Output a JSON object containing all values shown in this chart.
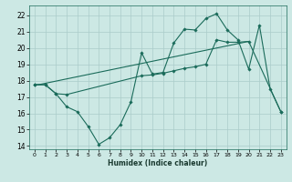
{
  "xlabel": "Humidex (Indice chaleur)",
  "background_color": "#cce8e4",
  "grid_color": "#aaccca",
  "line_color": "#1a6b5a",
  "xlim": [
    -0.5,
    23.5
  ],
  "ylim": [
    13.8,
    22.6
  ],
  "xticks": [
    0,
    1,
    2,
    3,
    4,
    5,
    6,
    7,
    8,
    9,
    10,
    11,
    12,
    13,
    14,
    15,
    16,
    17,
    18,
    19,
    20,
    21,
    22,
    23
  ],
  "yticks": [
    14,
    15,
    16,
    17,
    18,
    19,
    20,
    21,
    22
  ],
  "line1_x": [
    0,
    1,
    2,
    3,
    4,
    5,
    6,
    7,
    8,
    9,
    10,
    11,
    12,
    13,
    14,
    15,
    16,
    17,
    18,
    19,
    20,
    21,
    22,
    23
  ],
  "line1_y": [
    17.75,
    17.75,
    17.2,
    16.4,
    16.1,
    15.2,
    14.1,
    14.5,
    15.3,
    16.7,
    19.7,
    18.4,
    18.5,
    20.3,
    21.15,
    21.1,
    21.8,
    22.1,
    21.1,
    20.5,
    18.7,
    21.4,
    17.5,
    16.1
  ],
  "line2_x": [
    0,
    20
  ],
  "line2_y": [
    17.7,
    20.4
  ],
  "line3_x": [
    0,
    1,
    2,
    3,
    10,
    11,
    12,
    13,
    14,
    15,
    16,
    17,
    18,
    19,
    20,
    23
  ],
  "line3_y": [
    17.75,
    17.75,
    17.2,
    17.15,
    18.3,
    18.35,
    18.45,
    18.6,
    18.75,
    18.85,
    19.0,
    20.5,
    20.35,
    20.35,
    20.4,
    16.1
  ]
}
